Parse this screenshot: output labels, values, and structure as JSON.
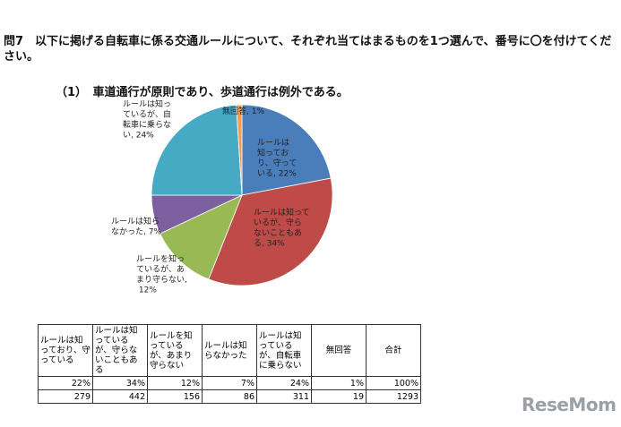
{
  "chart_data": {
    "type": "pie",
    "title": "問7　以下に掲げる自転車に係る交通ルールについて、それぞれ当てはまるものを1つ選んで、番号に〇を付けてください。",
    "subtitle": "（1）　車道通行が原則であり、歩道通行は例外である。",
    "categories": [
      "ルールは知っており、守っている",
      "ルールは知っているが、守らないこともある",
      "ルールを知っているが、あまり守らない",
      "ルールは知らなかった",
      "ルールは知っているが、自転車に乗らない",
      "無回答"
    ],
    "values": [
      22,
      34,
      12,
      7,
      24,
      1
    ],
    "value_labels": [
      "ルールは知っており、守っている, 22%",
      "ルールは知っているが、守らないこともある, 34%",
      "ルールを知っているが、あまり守らない, 12%",
      "ルールは知らなかった, 7%",
      "ルールは知っているが、自転車に乗らない, 24%",
      "無回答, 1%"
    ],
    "colors": [
      "#4a7ebb",
      "#be4b48",
      "#98b954",
      "#7d60a0",
      "#46aac5",
      "#f59d56"
    ]
  },
  "table": {
    "header": [
      "ルールは知っており、守っている",
      "ルールは知っているが、守らないこともある",
      "ルールを知っているが、あまり守らない",
      "ルールは知らなかった",
      "ルールは知っているが、自転車に乗らない",
      "無回答",
      "合計"
    ],
    "rows": [
      [
        "22%",
        "34%",
        "12%",
        "7%",
        "24%",
        "1%",
        "100%"
      ],
      [
        "279",
        "442",
        "156",
        "86",
        "311",
        "19",
        "1293"
      ]
    ]
  },
  "watermark": "ReseMom"
}
